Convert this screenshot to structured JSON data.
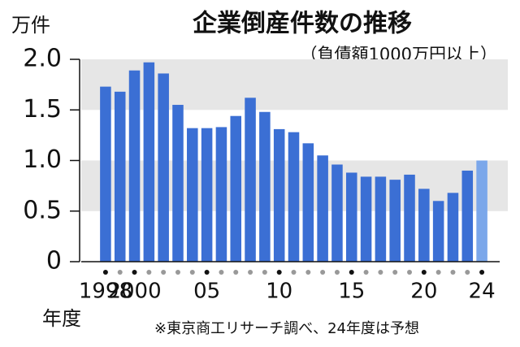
{
  "chart_data": {
    "type": "bar",
    "title": "企業倒産件数の推移",
    "subtitle": "（負債額1000万円以上）",
    "y_unit": "万件",
    "x_unit": "年度",
    "note": "※東京商工リサーチ調べ、24年度は予想",
    "categories": [
      "1998",
      null,
      "2000",
      null,
      null,
      null,
      null,
      "05",
      null,
      null,
      null,
      null,
      "10",
      null,
      null,
      null,
      null,
      "15",
      null,
      null,
      null,
      null,
      "20",
      null,
      null,
      null,
      "24"
    ],
    "values": [
      1.73,
      1.68,
      1.89,
      1.97,
      1.86,
      1.55,
      1.32,
      1.32,
      1.33,
      1.44,
      1.62,
      1.48,
      1.31,
      1.28,
      1.17,
      1.05,
      0.96,
      0.88,
      0.84,
      0.84,
      0.81,
      0.86,
      0.72,
      0.6,
      0.68,
      0.9,
      1.0
    ],
    "colors": [
      "#3b6fd4",
      "#3b6fd4",
      "#3b6fd4",
      "#3b6fd4",
      "#3b6fd4",
      "#3b6fd4",
      "#3b6fd4",
      "#3b6fd4",
      "#3b6fd4",
      "#3b6fd4",
      "#3b6fd4",
      "#3b6fd4",
      "#3b6fd4",
      "#3b6fd4",
      "#3b6fd4",
      "#3b6fd4",
      "#3b6fd4",
      "#3b6fd4",
      "#3b6fd4",
      "#3b6fd4",
      "#3b6fd4",
      "#3b6fd4",
      "#3b6fd4",
      "#3b6fd4",
      "#3b6fd4",
      "#3b6fd4",
      "#7ba7ea"
    ],
    "ylim": [
      0,
      2.0
    ],
    "yticks": [
      0,
      {
        "value": 0.5,
        "label": "0.5"
      },
      {
        "value": 1.0,
        "label": "1.0"
      },
      {
        "value": 1.5,
        "label": "1.5"
      },
      {
        "value": 2.0,
        "label": "2.0"
      }
    ]
  }
}
